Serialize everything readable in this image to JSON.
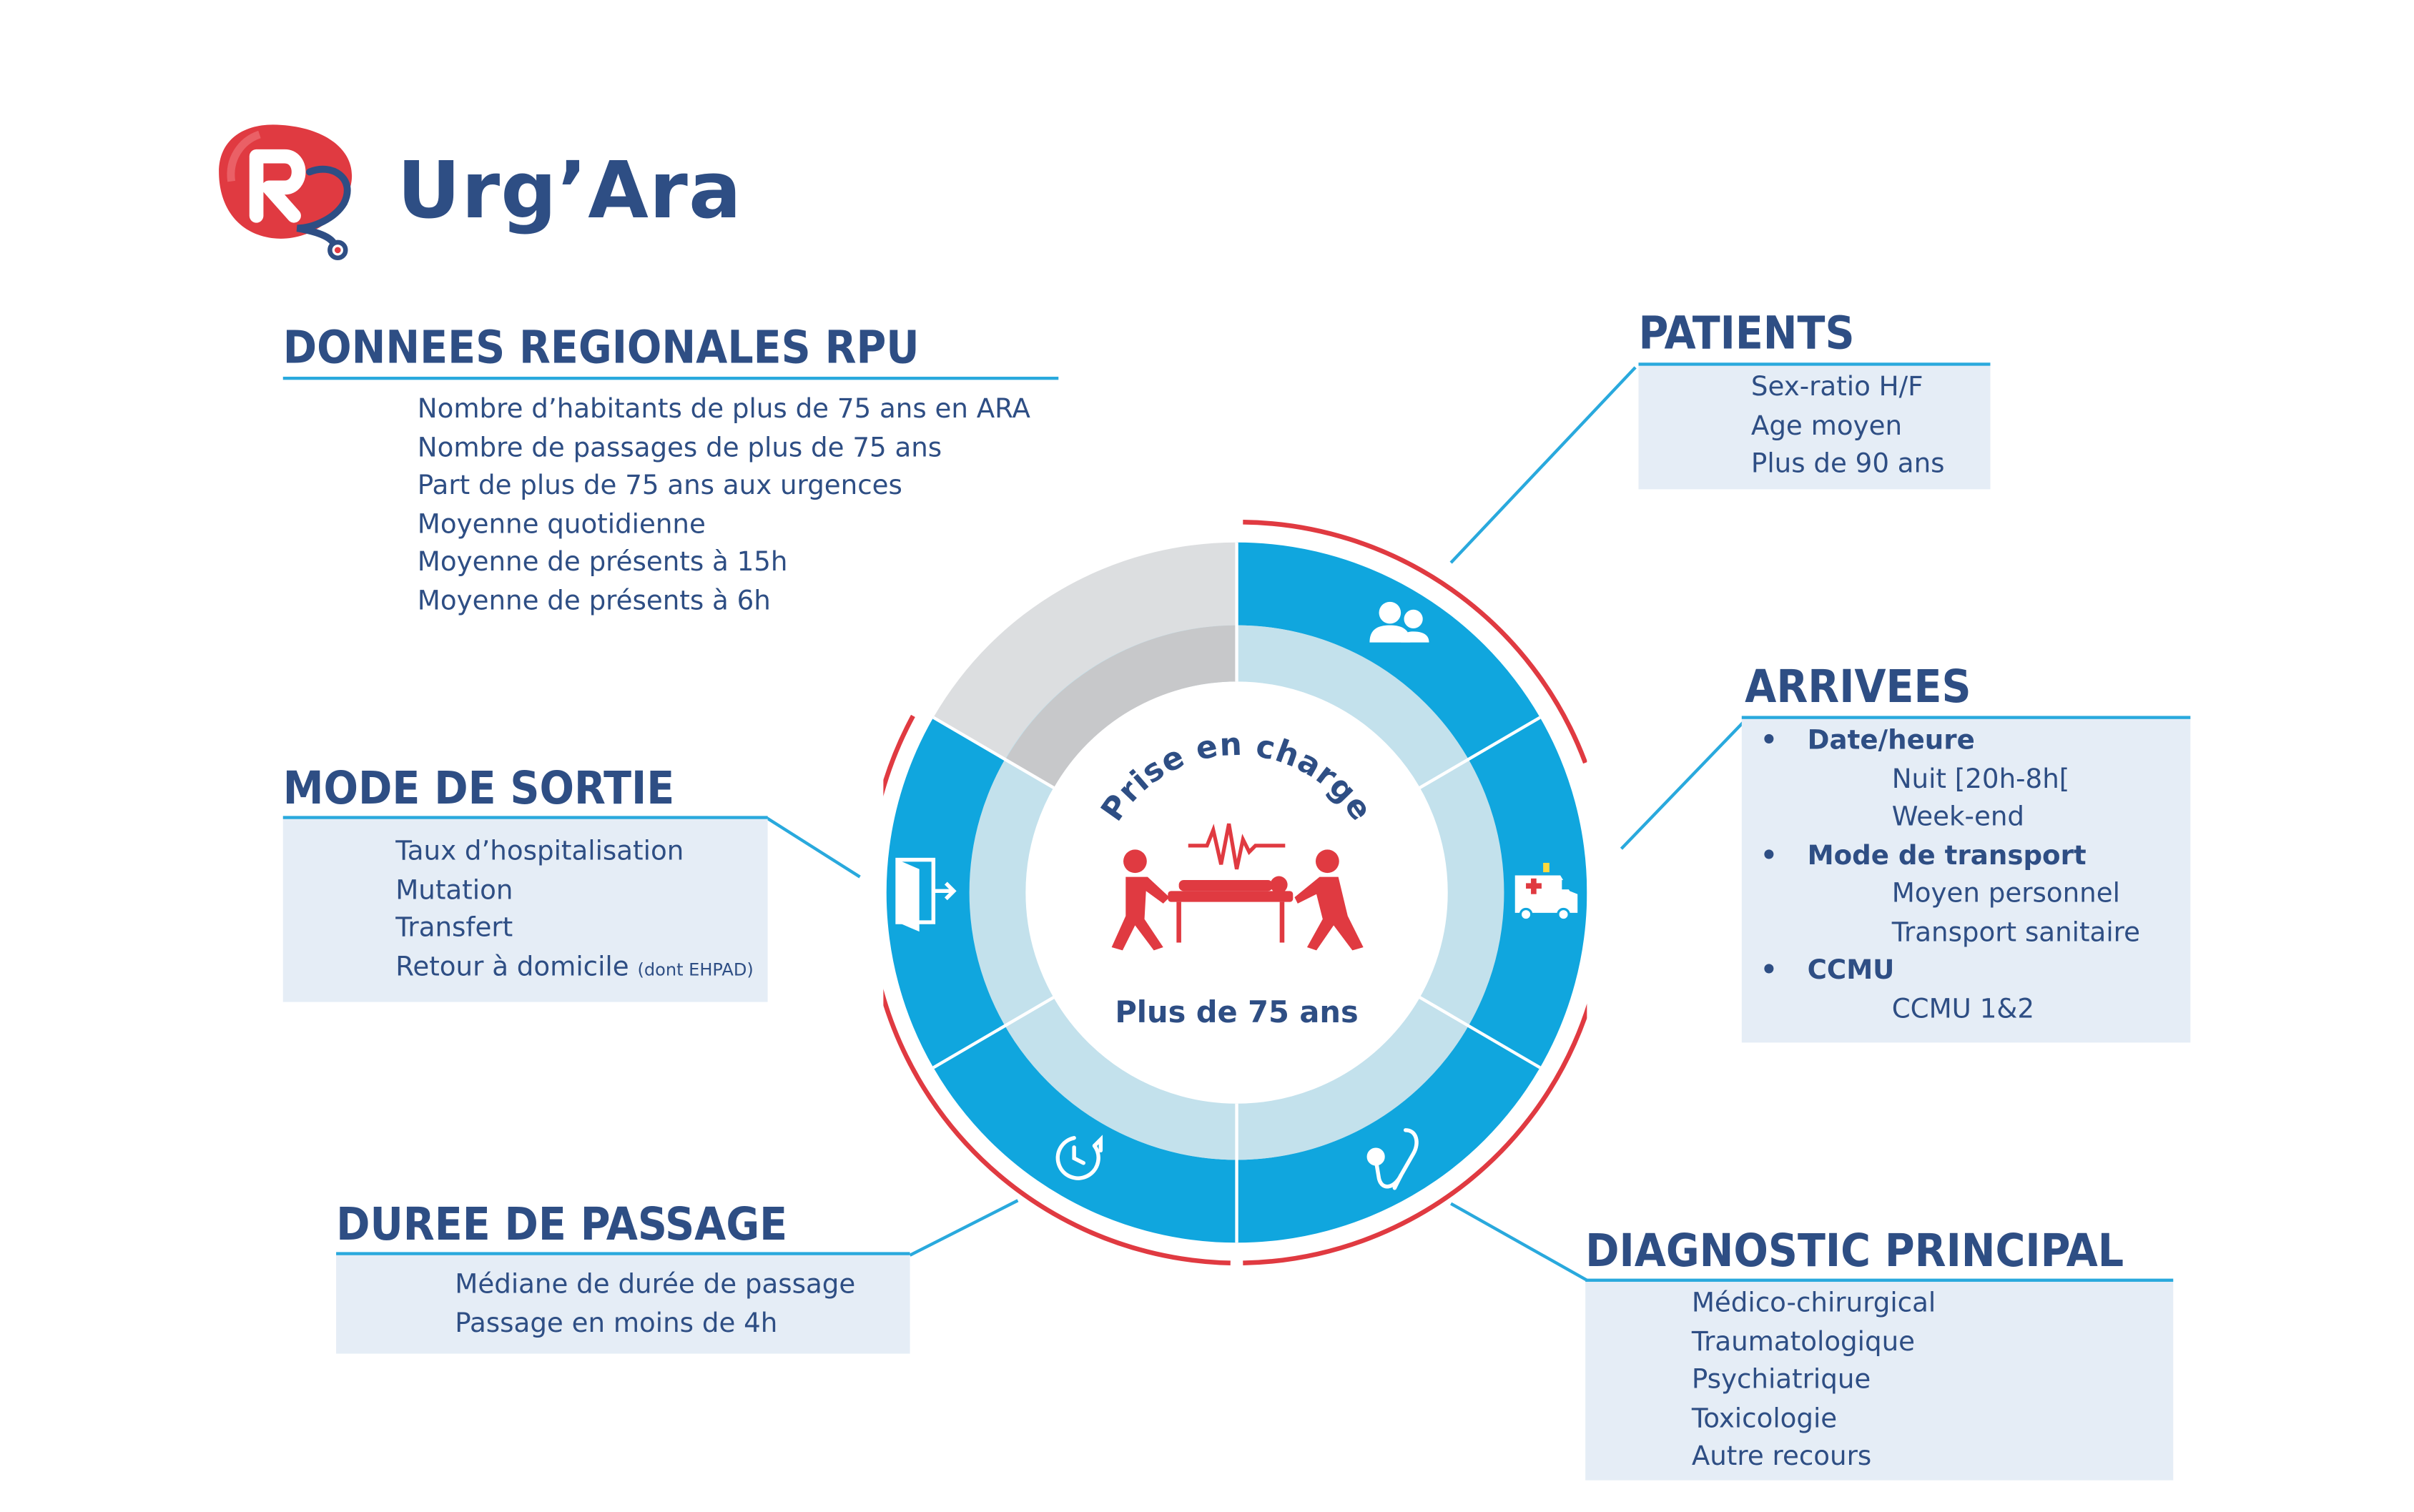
{
  "logo": {
    "name": "Urg’Ara"
  },
  "center": {
    "arc_text": "Prise en charge",
    "subtitle": "Plus de 75 ans"
  },
  "regional": {
    "title": "DONNEES REGIONALES RPU",
    "items": [
      "Nombre d’habitants de plus de 75 ans en ARA",
      "Nombre de passages de plus de 75 ans",
      "Part de plus de 75 ans aux urgences",
      "Moyenne quotidienne",
      "Moyenne de présents à 15h",
      "Moyenne de présents à 6h"
    ]
  },
  "patients": {
    "title": "PATIENTS",
    "items": [
      "Sex-ratio H/F",
      "Age moyen",
      "Plus de 90 ans"
    ]
  },
  "arrivees": {
    "title": "ARRIVEES",
    "bullet": "•",
    "groups": [
      {
        "label": "Date/heure",
        "items": [
          "Nuit [20h-8h[",
          "Week-end"
        ]
      },
      {
        "label": "Mode de transport",
        "items": [
          "Moyen personnel",
          "Transport sanitaire"
        ]
      },
      {
        "label": "CCMU",
        "items": [
          "CCMU 1&2"
        ]
      }
    ]
  },
  "sortie": {
    "title": "MODE DE SORTIE",
    "items": [
      "Taux d’hospitalisation",
      "Mutation",
      "Transfert"
    ],
    "last_item": "Retour à domicile",
    "last_item_note": "(dont EHPAD)"
  },
  "duree": {
    "title": "DUREE DE PASSAGE",
    "items": [
      "Médiane de durée de passage",
      "Passage en moins de 4h"
    ]
  },
  "diagnostic": {
    "title": "DIAGNOSTIC PRINCIPAL",
    "items": [
      "Médico-chirurgical",
      "Traumatologique",
      "Psychiatrique",
      "Toxicologie",
      "Autre recours"
    ]
  },
  "icons": {
    "logo": "urgara-logo-icon",
    "patients": "patients-group-icon",
    "arrivees": "ambulance-icon",
    "diagnostic": "stethoscope-icon",
    "duree": "clock-timer-icon",
    "sortie": "exit-door-icon",
    "center": "stretcher-carriers-icon"
  },
  "colors": {
    "navy": "#2e4e84",
    "blue": "#10a6de",
    "light_blue": "#c3e1ec",
    "grey_outer": "#dcdee0",
    "grey_inner": "#c7c8ca",
    "red": "#e03a41",
    "panel": "#e5edf6"
  }
}
